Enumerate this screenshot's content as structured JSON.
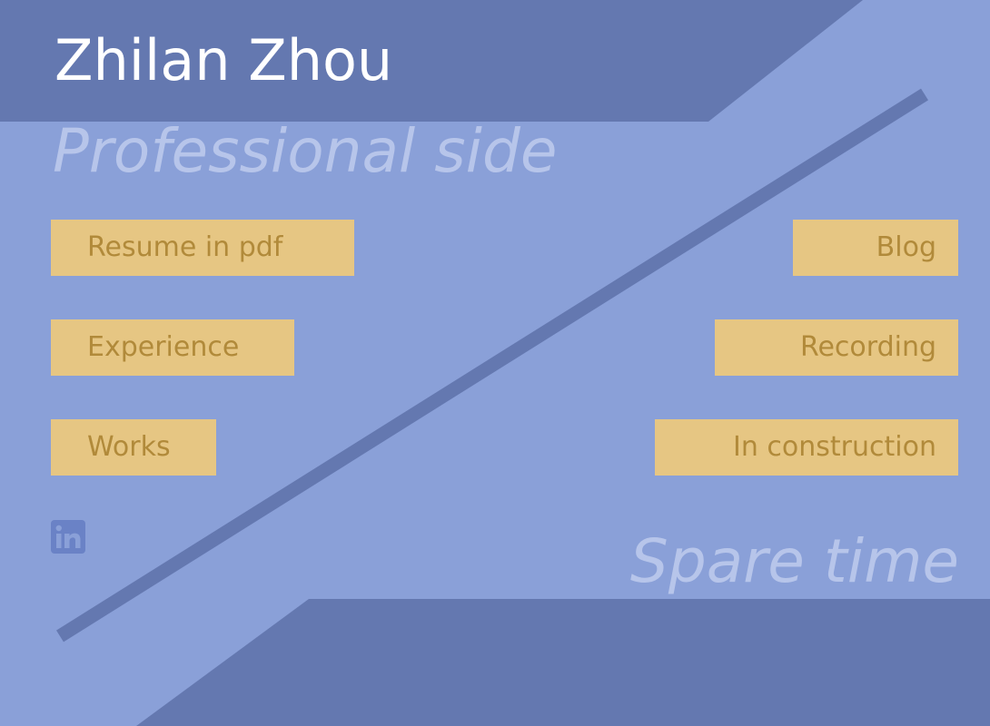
{
  "header": {
    "name": "Zhilan Zhou"
  },
  "sections": {
    "professional": "Professional side",
    "spare": "Spare time"
  },
  "professional_links": [
    {
      "label": "Resume in pdf"
    },
    {
      "label": "Experience"
    },
    {
      "label": "Works"
    }
  ],
  "spare_links": [
    {
      "label": "Blog"
    },
    {
      "label": "Recording"
    },
    {
      "label": "In construction"
    }
  ],
  "social": {
    "linkedin_text": "in",
    "icon": "linkedin-icon"
  },
  "colors": {
    "background": "#8aa0d8",
    "dark_band": "#6478b0",
    "button": "#e6c683",
    "button_text": "#b18a3a",
    "section_text": "#b7c5ea"
  }
}
